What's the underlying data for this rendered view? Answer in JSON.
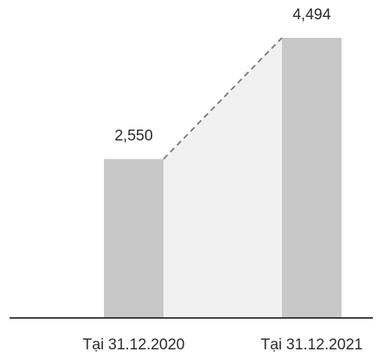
{
  "chart_data": {
    "type": "bar",
    "categories": [
      "Tại 31.12.2020",
      "Tại 31.12.2021"
    ],
    "values": [
      2550,
      4494
    ],
    "value_labels": [
      "2,550",
      "4,494"
    ],
    "ylim": [
      0,
      4494
    ],
    "grid": false,
    "connector": "dashed",
    "colors": {
      "bar": "#c8c8c8",
      "band": "#f1f1f1",
      "connector": "#7d7d7d",
      "axis": "#3a3a3a",
      "text": "#2b2b2b"
    }
  }
}
